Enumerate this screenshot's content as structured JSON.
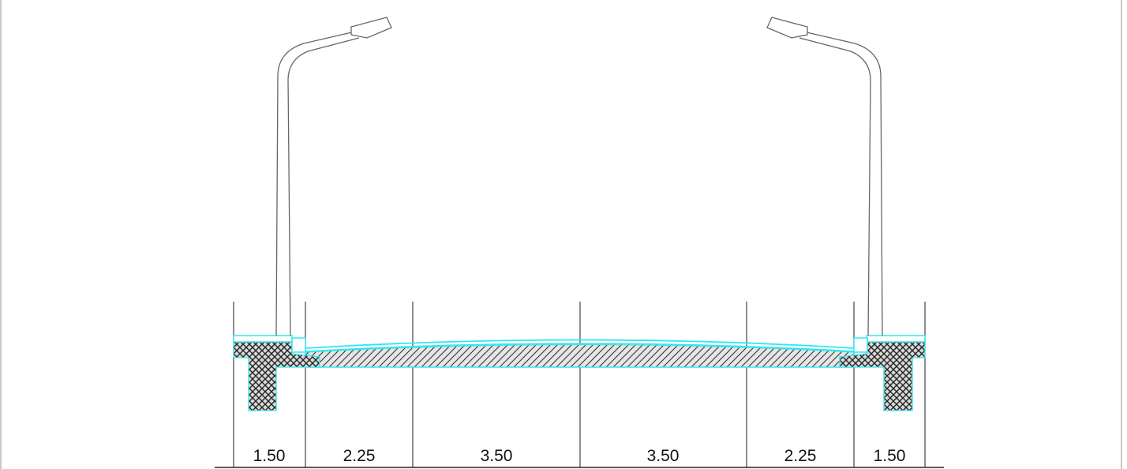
{
  "drawing": {
    "title": "",
    "dimensions": [
      {
        "id": "left-sidewalk",
        "label": "1.50"
      },
      {
        "id": "left-shoulder",
        "label": "2.25"
      },
      {
        "id": "left-lane",
        "label": "3.50"
      },
      {
        "id": "right-lane",
        "label": "3.50"
      },
      {
        "id": "right-shoulder",
        "label": "2.25"
      },
      {
        "id": "right-sidewalk",
        "label": "1.50"
      }
    ],
    "colors": {
      "line": "#555555",
      "asphalt_outline": "#33e6f0",
      "hatch": "#222222",
      "pole": "#666666"
    },
    "icons": {
      "left_lamp": "street-lamp-icon",
      "right_lamp": "street-lamp-icon"
    }
  }
}
